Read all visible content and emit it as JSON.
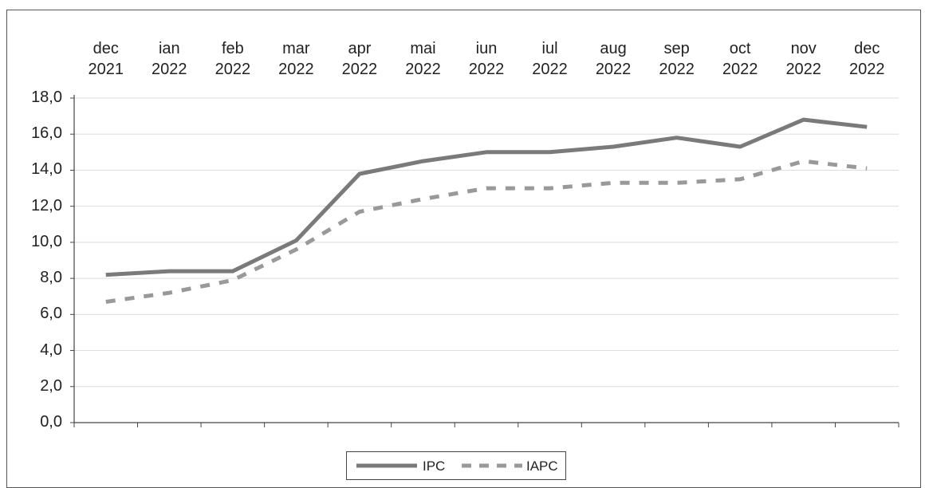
{
  "chart_data": {
    "type": "line",
    "categories": [
      [
        "dec",
        "2021"
      ],
      [
        "ian",
        "2022"
      ],
      [
        "feb",
        "2022"
      ],
      [
        "mar",
        "2022"
      ],
      [
        "apr",
        "2022"
      ],
      [
        "mai",
        "2022"
      ],
      [
        "iun",
        "2022"
      ],
      [
        "iul",
        "2022"
      ],
      [
        "aug",
        "2022"
      ],
      [
        "sep",
        "2022"
      ],
      [
        "oct",
        "2022"
      ],
      [
        "nov",
        "2022"
      ],
      [
        "dec",
        "2022"
      ]
    ],
    "series": [
      {
        "name": "IPC",
        "style": "solid",
        "color": "#7a7a7a",
        "values": [
          8.2,
          8.4,
          8.4,
          10.1,
          13.8,
          14.5,
          15.0,
          15.0,
          15.3,
          15.8,
          15.3,
          16.8,
          16.4
        ]
      },
      {
        "name": "IAPC",
        "style": "dashed",
        "color": "#999999",
        "values": [
          6.7,
          7.2,
          7.9,
          9.6,
          11.7,
          12.4,
          13.0,
          13.0,
          13.3,
          13.3,
          13.5,
          14.5,
          14.1
        ]
      }
    ],
    "yticks": [
      "0,0",
      "2,0",
      "4,0",
      "6,0",
      "8,0",
      "10,0",
      "12,0",
      "14,0",
      "16,0",
      "18,0"
    ],
    "ylim": [
      0,
      18
    ],
    "grid": true,
    "legend_position": "bottom",
    "title": "",
    "xlabel": "",
    "ylabel": ""
  }
}
